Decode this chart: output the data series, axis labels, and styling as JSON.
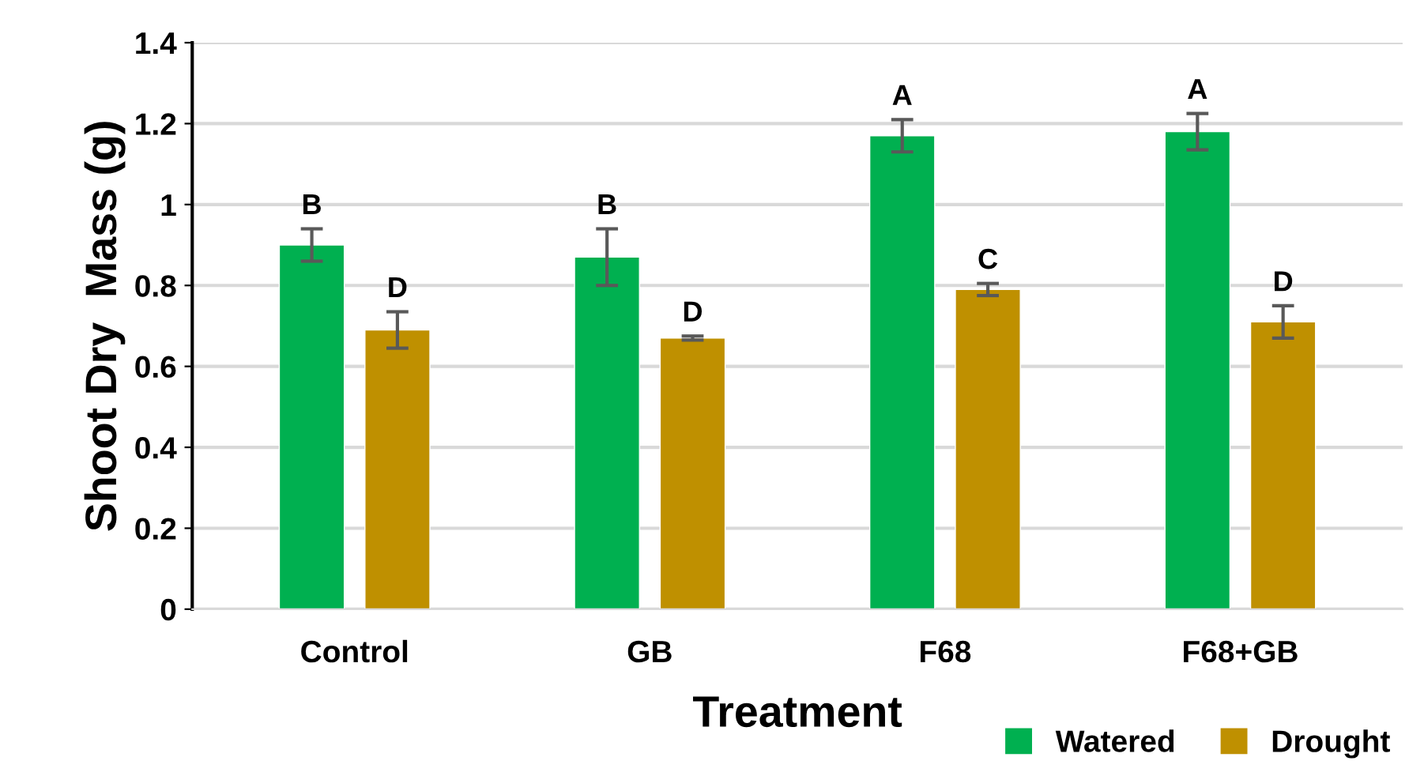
{
  "chart_data": {
    "type": "bar",
    "xlabel": "Treatment",
    "ylabel": "Shoot Dry  Mass (g)",
    "categories": [
      "Control",
      "GB",
      "F68",
      "F68+GB"
    ],
    "series": [
      {
        "name": "Watered",
        "color": "#00b050",
        "values": [
          0.9,
          0.87,
          1.17,
          1.18
        ],
        "errors": [
          0.04,
          0.07,
          0.04,
          0.045
        ],
        "value_labels": [
          "B",
          "B",
          "A",
          "A"
        ]
      },
      {
        "name": "Drought",
        "color": "#bf9000",
        "values": [
          0.69,
          0.67,
          0.79,
          0.71
        ],
        "errors": [
          0.045,
          0.005,
          0.015,
          0.04
        ],
        "value_labels": [
          "D",
          "D",
          "C",
          "D"
        ]
      }
    ],
    "ylim": [
      0,
      1.4
    ],
    "yticks": [
      0,
      0.2,
      0.4,
      0.6,
      0.8,
      1,
      1.2,
      1.4
    ],
    "grid": "y",
    "legend": "bottom right"
  }
}
